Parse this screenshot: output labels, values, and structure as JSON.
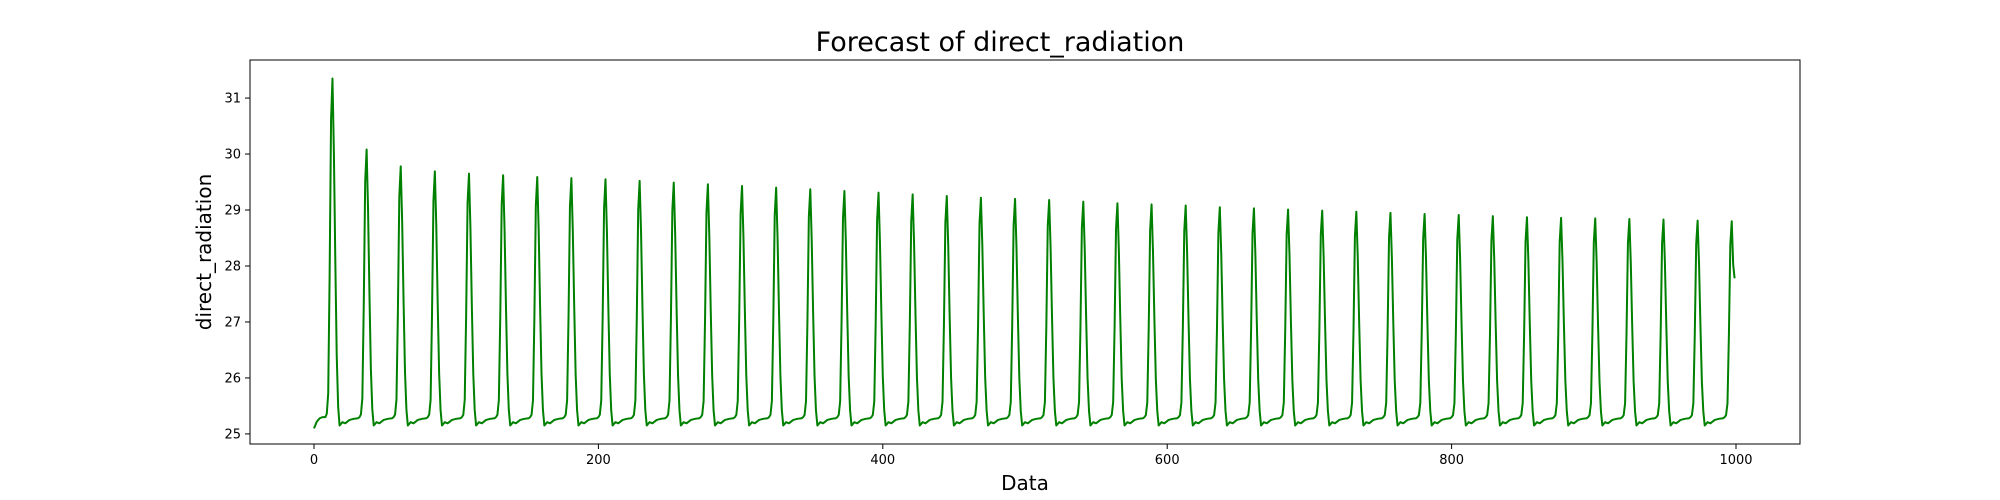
{
  "chart_data": {
    "type": "line",
    "title": "Forecast of direct_radiation",
    "xlabel": "Data",
    "ylabel": "direct_radiation",
    "xlim": [
      -45,
      1045
    ],
    "ylim": [
      24.82,
      31.68
    ],
    "xticks": [
      0,
      200,
      400,
      600,
      800,
      1000
    ],
    "yticks": [
      25,
      26,
      27,
      28,
      29,
      30,
      31
    ],
    "grid": false,
    "legend": "none",
    "colors": {
      "line": "#008000",
      "axes": "#000000"
    },
    "series": [
      {
        "cycle_period": 24,
        "x_range": [
          0,
          998
        ],
        "peak_x": [
          13,
          37,
          61,
          85,
          109,
          133,
          157,
          181,
          205,
          229,
          253,
          277,
          301,
          325,
          349,
          373,
          397,
          421,
          445,
          469,
          493,
          517,
          541,
          565,
          589,
          613,
          637,
          661,
          685,
          709,
          733,
          757,
          781,
          805,
          829,
          853,
          877,
          901,
          925,
          949,
          973,
          997
        ],
        "peak_values": [
          31.35,
          30.08,
          29.78,
          29.69,
          29.65,
          29.62,
          29.59,
          29.57,
          29.55,
          29.52,
          29.49,
          29.46,
          29.43,
          29.4,
          29.37,
          29.34,
          29.31,
          29.28,
          29.25,
          29.22,
          29.2,
          29.18,
          29.15,
          29.12,
          29.1,
          29.08,
          29.05,
          29.03,
          29.01,
          28.99,
          28.97,
          28.95,
          28.93,
          28.91,
          28.89,
          28.87,
          28.86,
          28.85,
          28.84,
          28.83,
          28.81,
          28.8
        ],
        "trough_value": 25.15,
        "plateau_value": 25.3,
        "first_value": 25.1,
        "last_value": 27.78
      }
    ]
  }
}
